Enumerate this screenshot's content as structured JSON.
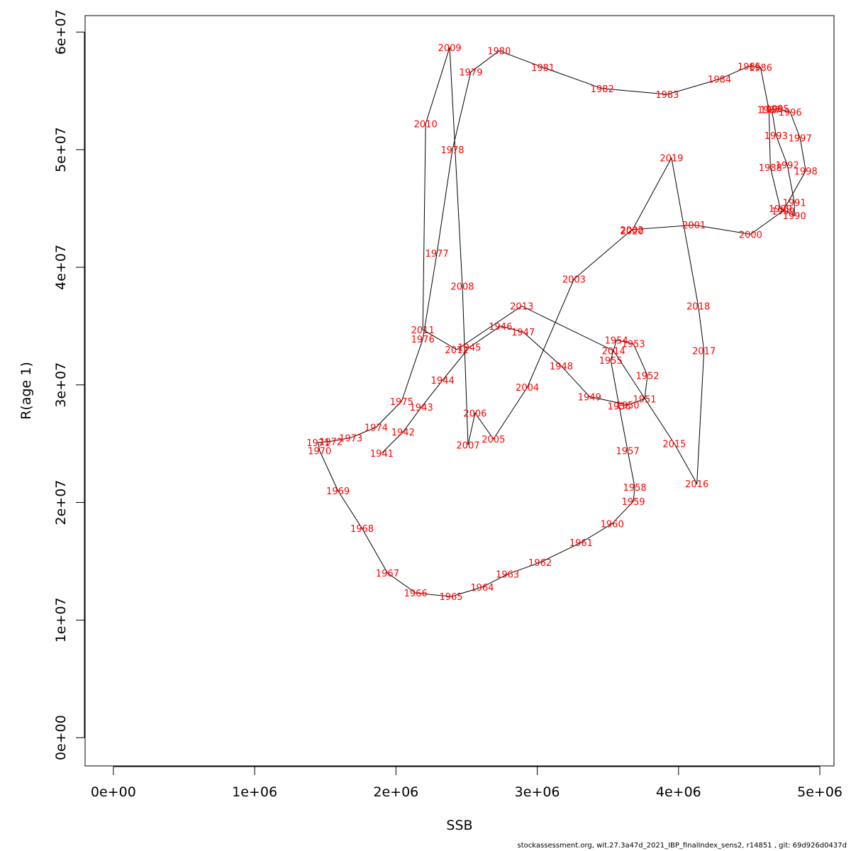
{
  "chart_data": {
    "type": "line",
    "xlabel": "SSB",
    "ylabel": "R(age 1)",
    "xlim": [
      -200000,
      5100000
    ],
    "ylim": [
      -2400000,
      61400000
    ],
    "x_ticks": [
      0,
      1000000,
      2000000,
      3000000,
      4000000,
      5000000
    ],
    "x_tick_labels": [
      "0e+00",
      "1e+06",
      "2e+06",
      "3e+06",
      "4e+06",
      "5e+06"
    ],
    "y_ticks": [
      0,
      10000000,
      20000000,
      30000000,
      40000000,
      50000000,
      60000000
    ],
    "y_tick_labels": [
      "0e+00",
      "1e+07",
      "2e+07",
      "3e+07",
      "4e+07",
      "5e+07",
      "6e+07"
    ],
    "grid": false,
    "line_color": "#000000",
    "label_color": "#ff0000",
    "series": [
      {
        "points": [
          {
            "label": "1941",
            "x": 1900000,
            "y": 24200000
          },
          {
            "label": "1942",
            "x": 2050000,
            "y": 26000000
          },
          {
            "label": "1943",
            "x": 2180000,
            "y": 28100000
          },
          {
            "label": "1944",
            "x": 2330000,
            "y": 30400000
          },
          {
            "label": "1945",
            "x": 2520000,
            "y": 33200000
          },
          {
            "label": "1946",
            "x": 2740000,
            "y": 35000000
          },
          {
            "label": "1947",
            "x": 2900000,
            "y": 34500000
          },
          {
            "label": "1948",
            "x": 3170000,
            "y": 31600000
          },
          {
            "label": "1949",
            "x": 3370000,
            "y": 29000000
          },
          {
            "label": "1950",
            "x": 3640000,
            "y": 28300000
          },
          {
            "label": "1951",
            "x": 3760000,
            "y": 28800000
          },
          {
            "label": "1952",
            "x": 3780000,
            "y": 30800000
          },
          {
            "label": "1953",
            "x": 3680000,
            "y": 33500000
          },
          {
            "label": "1954",
            "x": 3560000,
            "y": 33800000
          },
          {
            "label": "1955",
            "x": 3520000,
            "y": 32100000
          },
          {
            "label": "1956",
            "x": 3580000,
            "y": 28200000
          },
          {
            "label": "1957",
            "x": 3640000,
            "y": 24400000
          },
          {
            "label": "1958",
            "x": 3690000,
            "y": 21300000
          },
          {
            "label": "1959",
            "x": 3680000,
            "y": 20100000
          },
          {
            "label": "1960",
            "x": 3530000,
            "y": 18200000
          },
          {
            "label": "1961",
            "x": 3310000,
            "y": 16600000
          },
          {
            "label": "1962",
            "x": 3020000,
            "y": 14900000
          },
          {
            "label": "1963",
            "x": 2790000,
            "y": 13900000
          },
          {
            "label": "1964",
            "x": 2610000,
            "y": 12800000
          },
          {
            "label": "1965",
            "x": 2390000,
            "y": 12000000
          },
          {
            "label": "1966",
            "x": 2140000,
            "y": 12300000
          },
          {
            "label": "1967",
            "x": 1940000,
            "y": 14000000
          },
          {
            "label": "1968",
            "x": 1760000,
            "y": 17800000
          },
          {
            "label": "1969",
            "x": 1590000,
            "y": 21000000
          },
          {
            "label": "1970",
            "x": 1460000,
            "y": 24400000
          },
          {
            "label": "1971",
            "x": 1450000,
            "y": 25100000
          },
          {
            "label": "1972",
            "x": 1540000,
            "y": 25200000
          },
          {
            "label": "1973",
            "x": 1680000,
            "y": 25500000
          },
          {
            "label": "1974",
            "x": 1860000,
            "y": 26400000
          },
          {
            "label": "1975",
            "x": 2040000,
            "y": 28600000
          },
          {
            "label": "1976",
            "x": 2190000,
            "y": 33900000
          },
          {
            "label": "1977",
            "x": 2290000,
            "y": 41200000
          },
          {
            "label": "1978",
            "x": 2400000,
            "y": 50000000
          },
          {
            "label": "1979",
            "x": 2530000,
            "y": 56600000
          },
          {
            "label": "1980",
            "x": 2730000,
            "y": 58400000
          },
          {
            "label": "1981",
            "x": 3040000,
            "y": 57000000
          },
          {
            "label": "1982",
            "x": 3460000,
            "y": 55200000
          },
          {
            "label": "1983",
            "x": 3920000,
            "y": 54700000
          },
          {
            "label": "1984",
            "x": 4290000,
            "y": 56000000
          },
          {
            "label": "1985",
            "x": 4500000,
            "y": 57100000
          },
          {
            "label": "1986",
            "x": 4580000,
            "y": 57000000
          },
          {
            "label": "1987",
            "x": 4640000,
            "y": 53400000
          },
          {
            "label": "1988",
            "x": 4650000,
            "y": 48500000
          },
          {
            "label": "1989",
            "x": 4720000,
            "y": 45000000
          },
          {
            "label": "1990",
            "x": 4820000,
            "y": 44400000
          },
          {
            "label": "1991",
            "x": 4820000,
            "y": 45500000
          },
          {
            "label": "1992",
            "x": 4770000,
            "y": 48700000
          },
          {
            "label": "1993",
            "x": 4690000,
            "y": 51200000
          },
          {
            "label": "1994",
            "x": 4660000,
            "y": 53400000
          },
          {
            "label": "1995",
            "x": 4700000,
            "y": 53500000
          },
          {
            "label": "1996",
            "x": 4790000,
            "y": 53200000
          },
          {
            "label": "1997",
            "x": 4860000,
            "y": 51000000
          },
          {
            "label": "1998",
            "x": 4900000,
            "y": 48200000
          },
          {
            "label": "1999",
            "x": 4740000,
            "y": 44800000
          },
          {
            "label": "2000",
            "x": 4510000,
            "y": 42800000
          },
          {
            "label": "2001",
            "x": 4110000,
            "y": 43600000
          },
          {
            "label": "2002",
            "x": 3670000,
            "y": 43200000
          },
          {
            "label": "2003",
            "x": 3260000,
            "y": 39000000
          },
          {
            "label": "2004",
            "x": 2930000,
            "y": 29800000
          },
          {
            "label": "2005",
            "x": 2690000,
            "y": 25400000
          },
          {
            "label": "2006",
            "x": 2560000,
            "y": 27600000
          },
          {
            "label": "2007",
            "x": 2510000,
            "y": 24900000
          },
          {
            "label": "2008",
            "x": 2470000,
            "y": 38400000
          },
          {
            "label": "2009",
            "x": 2380000,
            "y": 58700000
          },
          {
            "label": "2010",
            "x": 2210000,
            "y": 52200000
          },
          {
            "label": "2011",
            "x": 2190000,
            "y": 34700000
          },
          {
            "label": "2012",
            "x": 2430000,
            "y": 33000000
          },
          {
            "label": "2013",
            "x": 2890000,
            "y": 36700000
          },
          {
            "label": "2014",
            "x": 3540000,
            "y": 32900000
          },
          {
            "label": "2015",
            "x": 3970000,
            "y": 25000000
          },
          {
            "label": "2016",
            "x": 4130000,
            "y": 21600000
          },
          {
            "label": "2017",
            "x": 4180000,
            "y": 32900000
          },
          {
            "label": "2018",
            "x": 4140000,
            "y": 36700000
          },
          {
            "label": "2019",
            "x": 3950000,
            "y": 49300000
          },
          {
            "label": "2020",
            "x": 3670000,
            "y": 43100000
          }
        ]
      }
    ]
  },
  "footer": "stockassessment.org, wit.27.3a47d_2021_IBP_finalIndex_sens2, r14851 , git: 69d926d0437d"
}
